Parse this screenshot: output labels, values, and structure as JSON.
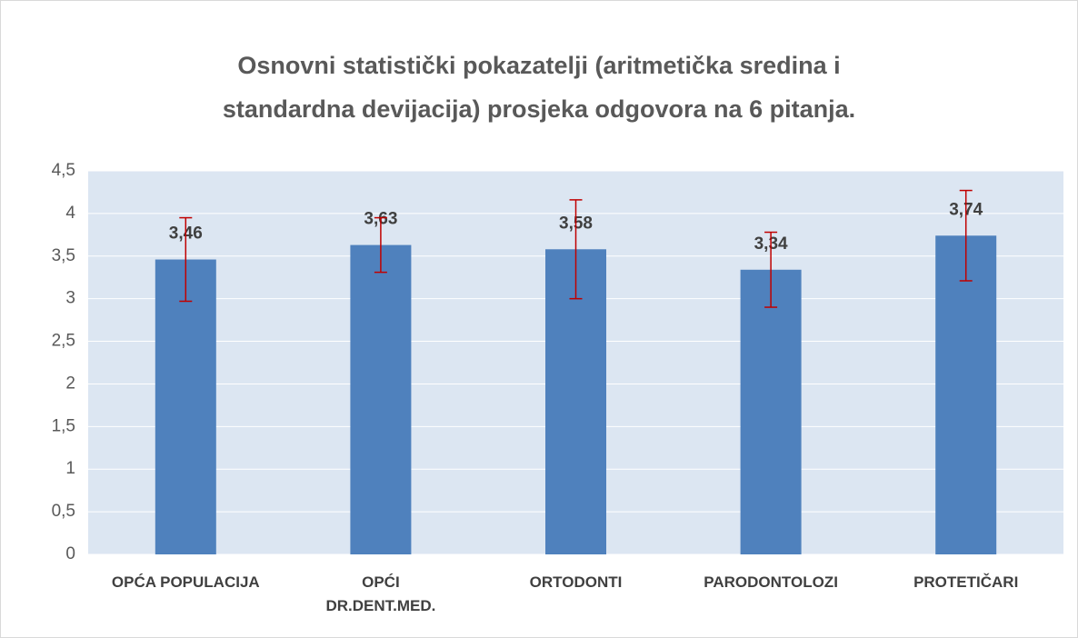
{
  "chart_data": {
    "type": "bar",
    "title": "Osnovni statistički pokazatelji (aritmetička sredina i\nstandardna devijacija) prosjeka odgovora na 6 pitanja.",
    "categories": [
      "OPĆA POPULACIJA",
      "OPĆI\nDR.DENT.MED.",
      "ORTODONTI",
      "PARODONTOLOZI",
      "PROTETIČARI"
    ],
    "values": [
      3.46,
      3.63,
      3.58,
      3.34,
      3.74
    ],
    "value_labels": [
      "3,46",
      "3,63",
      "3,58",
      "3,34",
      "3,74"
    ],
    "errors": [
      0.49,
      0.32,
      0.58,
      0.44,
      0.53
    ],
    "color": "#4f81bd",
    "error_color": "#c00000",
    "ylim": [
      0,
      4.5
    ],
    "yticks": [
      0,
      {
        "value": 0.5,
        "label": "0,5"
      },
      1,
      {
        "value": 1.5,
        "label": "1,5"
      },
      2,
      {
        "value": 2.5,
        "label": "2,5"
      },
      3,
      {
        "value": 3.5,
        "label": "3,5"
      },
      4,
      {
        "value": 4.5,
        "label": "4,5"
      }
    ],
    "grid": true
  }
}
